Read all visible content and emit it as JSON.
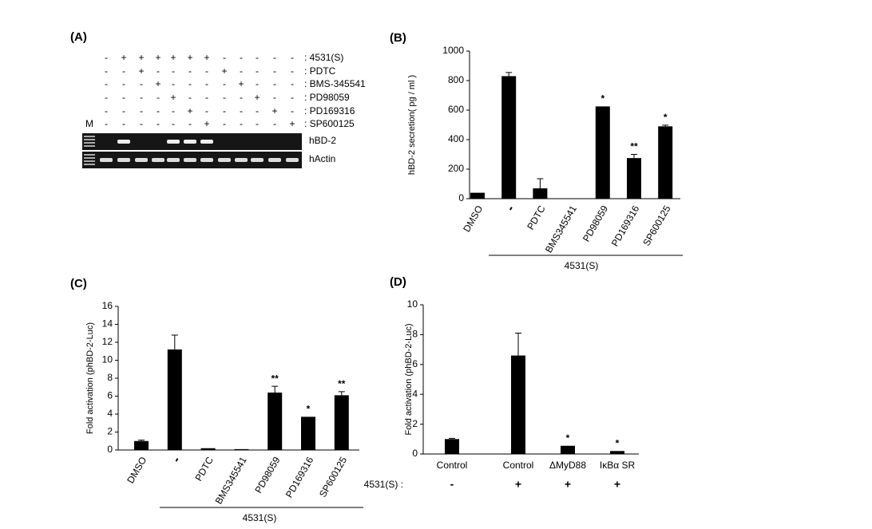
{
  "panel_a": {
    "label": "(A)",
    "marker": "M",
    "rows": [
      {
        "label": ": 4531(S)",
        "signs": [
          "-",
          "+",
          "+",
          "+",
          "+",
          "+",
          "+",
          "-",
          "-",
          "-",
          "-",
          "-"
        ]
      },
      {
        "label": ": PDTC",
        "signs": [
          "-",
          "-",
          "+",
          "-",
          "-",
          "-",
          "-",
          "+",
          "-",
          "-",
          "-",
          "-"
        ]
      },
      {
        "label": ": BMS-345541",
        "signs": [
          "-",
          "-",
          "-",
          "+",
          "-",
          "-",
          "-",
          "-",
          "+",
          "-",
          "-",
          "-"
        ]
      },
      {
        "label": ": PD98059",
        "signs": [
          "-",
          "-",
          "-",
          "-",
          "+",
          "-",
          "-",
          "-",
          "-",
          "+",
          "-",
          "-"
        ]
      },
      {
        "label": ": PD169316",
        "signs": [
          "-",
          "-",
          "-",
          "-",
          "-",
          "+",
          "-",
          "-",
          "-",
          "-",
          "+",
          "-"
        ]
      },
      {
        "label": ": SP600125",
        "signs": [
          "-",
          "-",
          "-",
          "-",
          "-",
          "-",
          "+",
          "-",
          "-",
          "-",
          "-",
          "+"
        ]
      }
    ],
    "gels": [
      "hBD-2",
      "hActin"
    ]
  },
  "chart_data": [
    {
      "type": "bar",
      "title": "(B)",
      "y_label": "hBD-2 secretion( pg / ml )",
      "categories": [
        "DMSO",
        "-",
        "PDTC",
        "BMS345541",
        "PD98059",
        "PD169316",
        "SP600125"
      ],
      "values": [
        40,
        830,
        70,
        0,
        625,
        275,
        490
      ],
      "errors": [
        null,
        25,
        65,
        null,
        null,
        25,
        8
      ],
      "significance": [
        null,
        null,
        null,
        null,
        "*",
        "**",
        "*"
      ],
      "group_label": "4531(S)",
      "color": "#000000",
      "ylim": [
        0,
        1000
      ],
      "yticks": [
        0,
        200,
        400,
        600,
        800,
        1000
      ]
    },
    {
      "type": "bar",
      "title": "(C)",
      "y_label": "Fold activation (phBD-2-Luc)",
      "categories": [
        "DMSO",
        "-",
        "PDTC",
        "BMS345541",
        "PD98059",
        "PD169316",
        "SP600125"
      ],
      "values": [
        1.0,
        11.2,
        0.2,
        0.1,
        6.4,
        3.7,
        6.1
      ],
      "errors": [
        0.1,
        1.6,
        null,
        null,
        0.7,
        null,
        0.4
      ],
      "significance": [
        null,
        null,
        null,
        null,
        "**",
        "*",
        "**"
      ],
      "group_label": "4531(S)",
      "color": "#000000",
      "ylim": [
        0,
        16
      ],
      "yticks": [
        0,
        2,
        4,
        6,
        8,
        10,
        12,
        14,
        16
      ]
    },
    {
      "type": "bar",
      "title": "(D)",
      "y_label": "Fold activation (phBD-2-Luc)",
      "categories": [
        "Control",
        "Control",
        "ΔMyD88",
        "IκBα SR"
      ],
      "values": [
        1.0,
        6.6,
        0.55,
        0.2
      ],
      "errors": [
        0.05,
        1.5,
        null,
        null
      ],
      "significance": [
        null,
        null,
        "*",
        "*"
      ],
      "treatment_label": "4531(S) :",
      "treatment": [
        "-",
        "+",
        "+",
        "+"
      ],
      "color": "#000000",
      "ylim": [
        0,
        10
      ],
      "yticks": [
        0,
        2,
        4,
        6,
        8,
        10
      ]
    }
  ]
}
